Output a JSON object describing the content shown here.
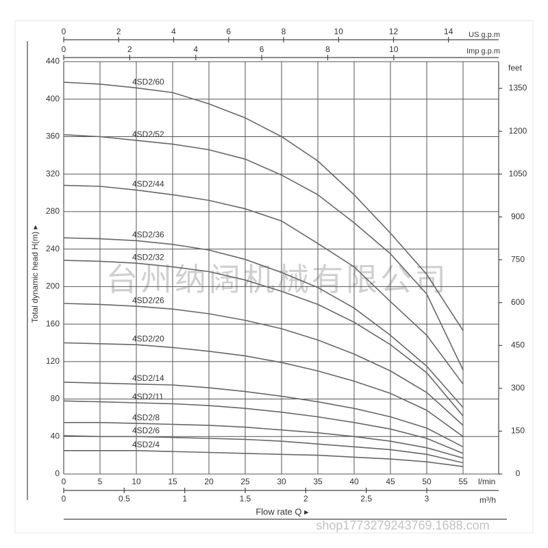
{
  "chart_data": {
    "type": "line",
    "y_label": "Total dynamic head H(m) ▸",
    "x_label": "Flow rate Q ▸",
    "x_unit": "l/min",
    "x": [
      0,
      5,
      10,
      15,
      20,
      25,
      30,
      35,
      40,
      45,
      50,
      55
    ],
    "xlim": [
      0,
      55
    ],
    "xticks": [
      0,
      5,
      10,
      15,
      20,
      25,
      30,
      35,
      40,
      45,
      50,
      55
    ],
    "ylim": [
      0,
      440
    ],
    "yticks": [
      0,
      40,
      80,
      120,
      160,
      200,
      240,
      280,
      320,
      360,
      400,
      440
    ],
    "y2_label": "feet",
    "y2lim": [
      0,
      1443.6
    ],
    "y2ticks": [
      0,
      150,
      300,
      450,
      600,
      750,
      900,
      1050,
      1200,
      1350
    ],
    "top_axes": [
      {
        "label": "US g.p.m",
        "xlim": [
          0,
          14.53
        ],
        "xticks": [
          0,
          2,
          4,
          6,
          8,
          10,
          12,
          14
        ]
      },
      {
        "label": "Imp g.p.m",
        "xlim": [
          0,
          12.1
        ],
        "xticks": [
          0,
          2,
          4,
          6,
          8,
          10
        ]
      }
    ],
    "bottom_axis2": {
      "label": "m³/h",
      "xlim": [
        0,
        3.3
      ],
      "xticks": [
        0,
        0.5,
        1,
        1.5,
        2,
        2.5,
        3
      ]
    },
    "grid": true,
    "color": "#666666",
    "series": [
      {
        "name": "4SD2/60",
        "values": [
          418,
          416,
          412,
          407,
          395,
          380,
          360,
          334,
          298,
          257,
          213,
          153
        ]
      },
      {
        "name": "4SD2/52",
        "values": [
          362,
          360,
          356,
          352,
          346,
          336,
          319,
          298,
          268,
          235,
          192,
          111
        ]
      },
      {
        "name": "4SD2/44",
        "values": [
          308,
          307,
          303,
          298,
          292,
          283,
          270,
          246,
          221,
          184,
          148,
          96
        ]
      },
      {
        "name": "4SD2/36",
        "values": [
          252,
          251,
          249,
          245,
          239,
          229,
          215,
          199,
          177,
          148,
          115,
          71
        ]
      },
      {
        "name": "4SD2/32",
        "values": [
          228,
          227,
          225,
          221,
          216,
          207,
          195,
          181,
          162,
          138,
          108,
          62
        ]
      },
      {
        "name": "4SD2/26",
        "values": [
          182,
          181,
          179,
          176,
          171,
          164,
          155,
          143,
          128,
          110,
          87,
          52
        ]
      },
      {
        "name": "4SD2/20",
        "values": [
          140,
          139,
          138,
          135,
          131,
          126,
          119,
          110,
          99,
          86,
          68,
          40
        ]
      },
      {
        "name": "4SD2/14",
        "values": [
          98,
          97,
          96,
          95,
          92,
          88,
          83,
          77,
          70,
          61,
          49,
          29
        ]
      },
      {
        "name": "4SD2/11",
        "values": [
          78,
          77,
          76,
          75,
          73,
          70,
          66,
          61,
          55,
          48,
          38,
          22
        ]
      },
      {
        "name": "4SD2/8",
        "values": [
          55,
          55,
          54,
          53,
          52,
          50,
          47,
          44,
          40,
          35,
          28,
          17
        ]
      },
      {
        "name": "4SD2/6",
        "values": [
          41,
          40,
          40,
          39,
          38,
          37,
          35,
          32,
          29,
          26,
          21,
          12
        ]
      },
      {
        "name": "4SD2/4",
        "values": [
          25,
          25,
          25,
          24,
          23,
          22,
          21,
          20,
          18,
          16,
          13,
          8
        ]
      }
    ],
    "watermarks": [
      "台州纳阔机械有限公司",
      "shop1773279243769.1688.com"
    ]
  }
}
